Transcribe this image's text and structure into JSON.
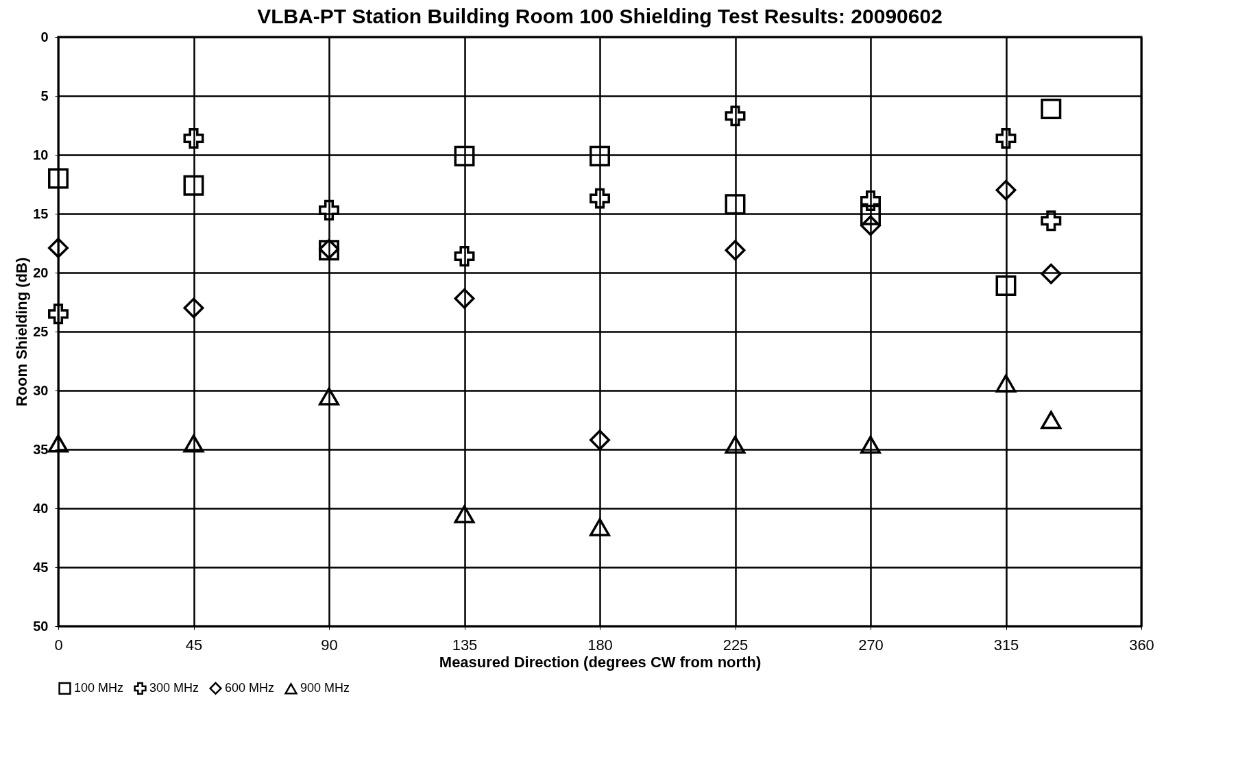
{
  "chart_data": {
    "type": "scatter",
    "title": "VLBA-PT Station Building Room 100 Shielding Test Results: 20090602",
    "xlabel": "Measured Direction (degrees CW from north)",
    "ylabel": "Room  Shielding (dB)",
    "xlim": [
      0,
      360
    ],
    "xticks": [
      0,
      45,
      90,
      135,
      180,
      225,
      270,
      315,
      360
    ],
    "ylim": [
      50,
      0
    ],
    "yticks": [
      0,
      5,
      10,
      15,
      20,
      25,
      30,
      35,
      40,
      45,
      50
    ],
    "grid": true,
    "legend": "bottom",
    "x": [
      0,
      45,
      90,
      135,
      180,
      225,
      270,
      315,
      330
    ],
    "series": [
      {
        "name": "100 MHz",
        "color": "#000000",
        "marker": "square",
        "values": [
          12,
          12.6,
          18.1,
          10.1,
          10.1,
          14.2,
          15.1,
          21.1,
          6.1
        ]
      },
      {
        "name": "300 MHz",
        "color": "#000000",
        "marker": "cross",
        "values": [
          23.5,
          8.6,
          14.7,
          18.6,
          13.7,
          6.7,
          13.9,
          8.6,
          15.6
        ]
      },
      {
        "name": "600 MHz",
        "color": "#000000",
        "marker": "diamond",
        "values": [
          17.9,
          23,
          18,
          22.2,
          34.2,
          18.1,
          16,
          13,
          20.1
        ]
      },
      {
        "name": "900 MHz",
        "color": "#000000",
        "marker": "triangle",
        "values": [
          34.5,
          34.5,
          30.5,
          40.5,
          41.6,
          34.6,
          34.6,
          29.4,
          32.5
        ]
      }
    ]
  }
}
